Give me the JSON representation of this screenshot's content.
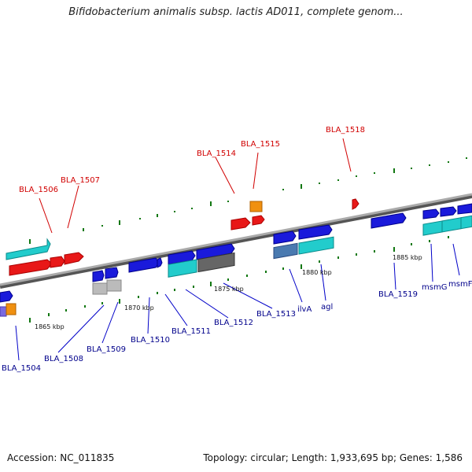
{
  "title": "Bifidobacterium animalis subsp. lactis AD011, complete genom...",
  "footer": {
    "accession": "Accession: NC_011835",
    "summary": "Topology: circular; Length: 1,933,695 bp; Genes: 1,586"
  },
  "colors": {
    "forward": "#1a1adb",
    "reverse_red": "#e81818",
    "orange": "#f09010",
    "cyan": "#22cccc",
    "gray": "#666666",
    "light_gray": "#bbbbbb",
    "steel": "#4a7ab0",
    "purple": "#7a6ae0",
    "ticks": "#117711",
    "axis": "#888888"
  },
  "kbp_labels": [
    "1865 kbp",
    "1870 kbp",
    "1875 kbp",
    "1880 kbp",
    "1885 kbp"
  ],
  "gene_labels": [
    {
      "text": "BLA_1506",
      "color": "red"
    },
    {
      "text": "BLA_1507",
      "color": "red"
    },
    {
      "text": "BLA_1514",
      "color": "red"
    },
    {
      "text": "BLA_1515",
      "color": "red"
    },
    {
      "text": "BLA_1518",
      "color": "red"
    },
    {
      "text": "BLA_1504",
      "color": "blue"
    },
    {
      "text": "BLA_1508",
      "color": "blue"
    },
    {
      "text": "BLA_1509",
      "color": "blue"
    },
    {
      "text": "BLA_1510",
      "color": "blue"
    },
    {
      "text": "BLA_1511",
      "color": "blue"
    },
    {
      "text": "BLA_1512",
      "color": "blue"
    },
    {
      "text": "BLA_1513",
      "color": "blue"
    },
    {
      "text": "ilvA",
      "color": "blue"
    },
    {
      "text": "agl",
      "color": "blue"
    },
    {
      "text": "BLA_1519",
      "color": "blue"
    },
    {
      "text": "msmG",
      "color": "blue"
    },
    {
      "text": "msmF",
      "color": "blue"
    }
  ]
}
